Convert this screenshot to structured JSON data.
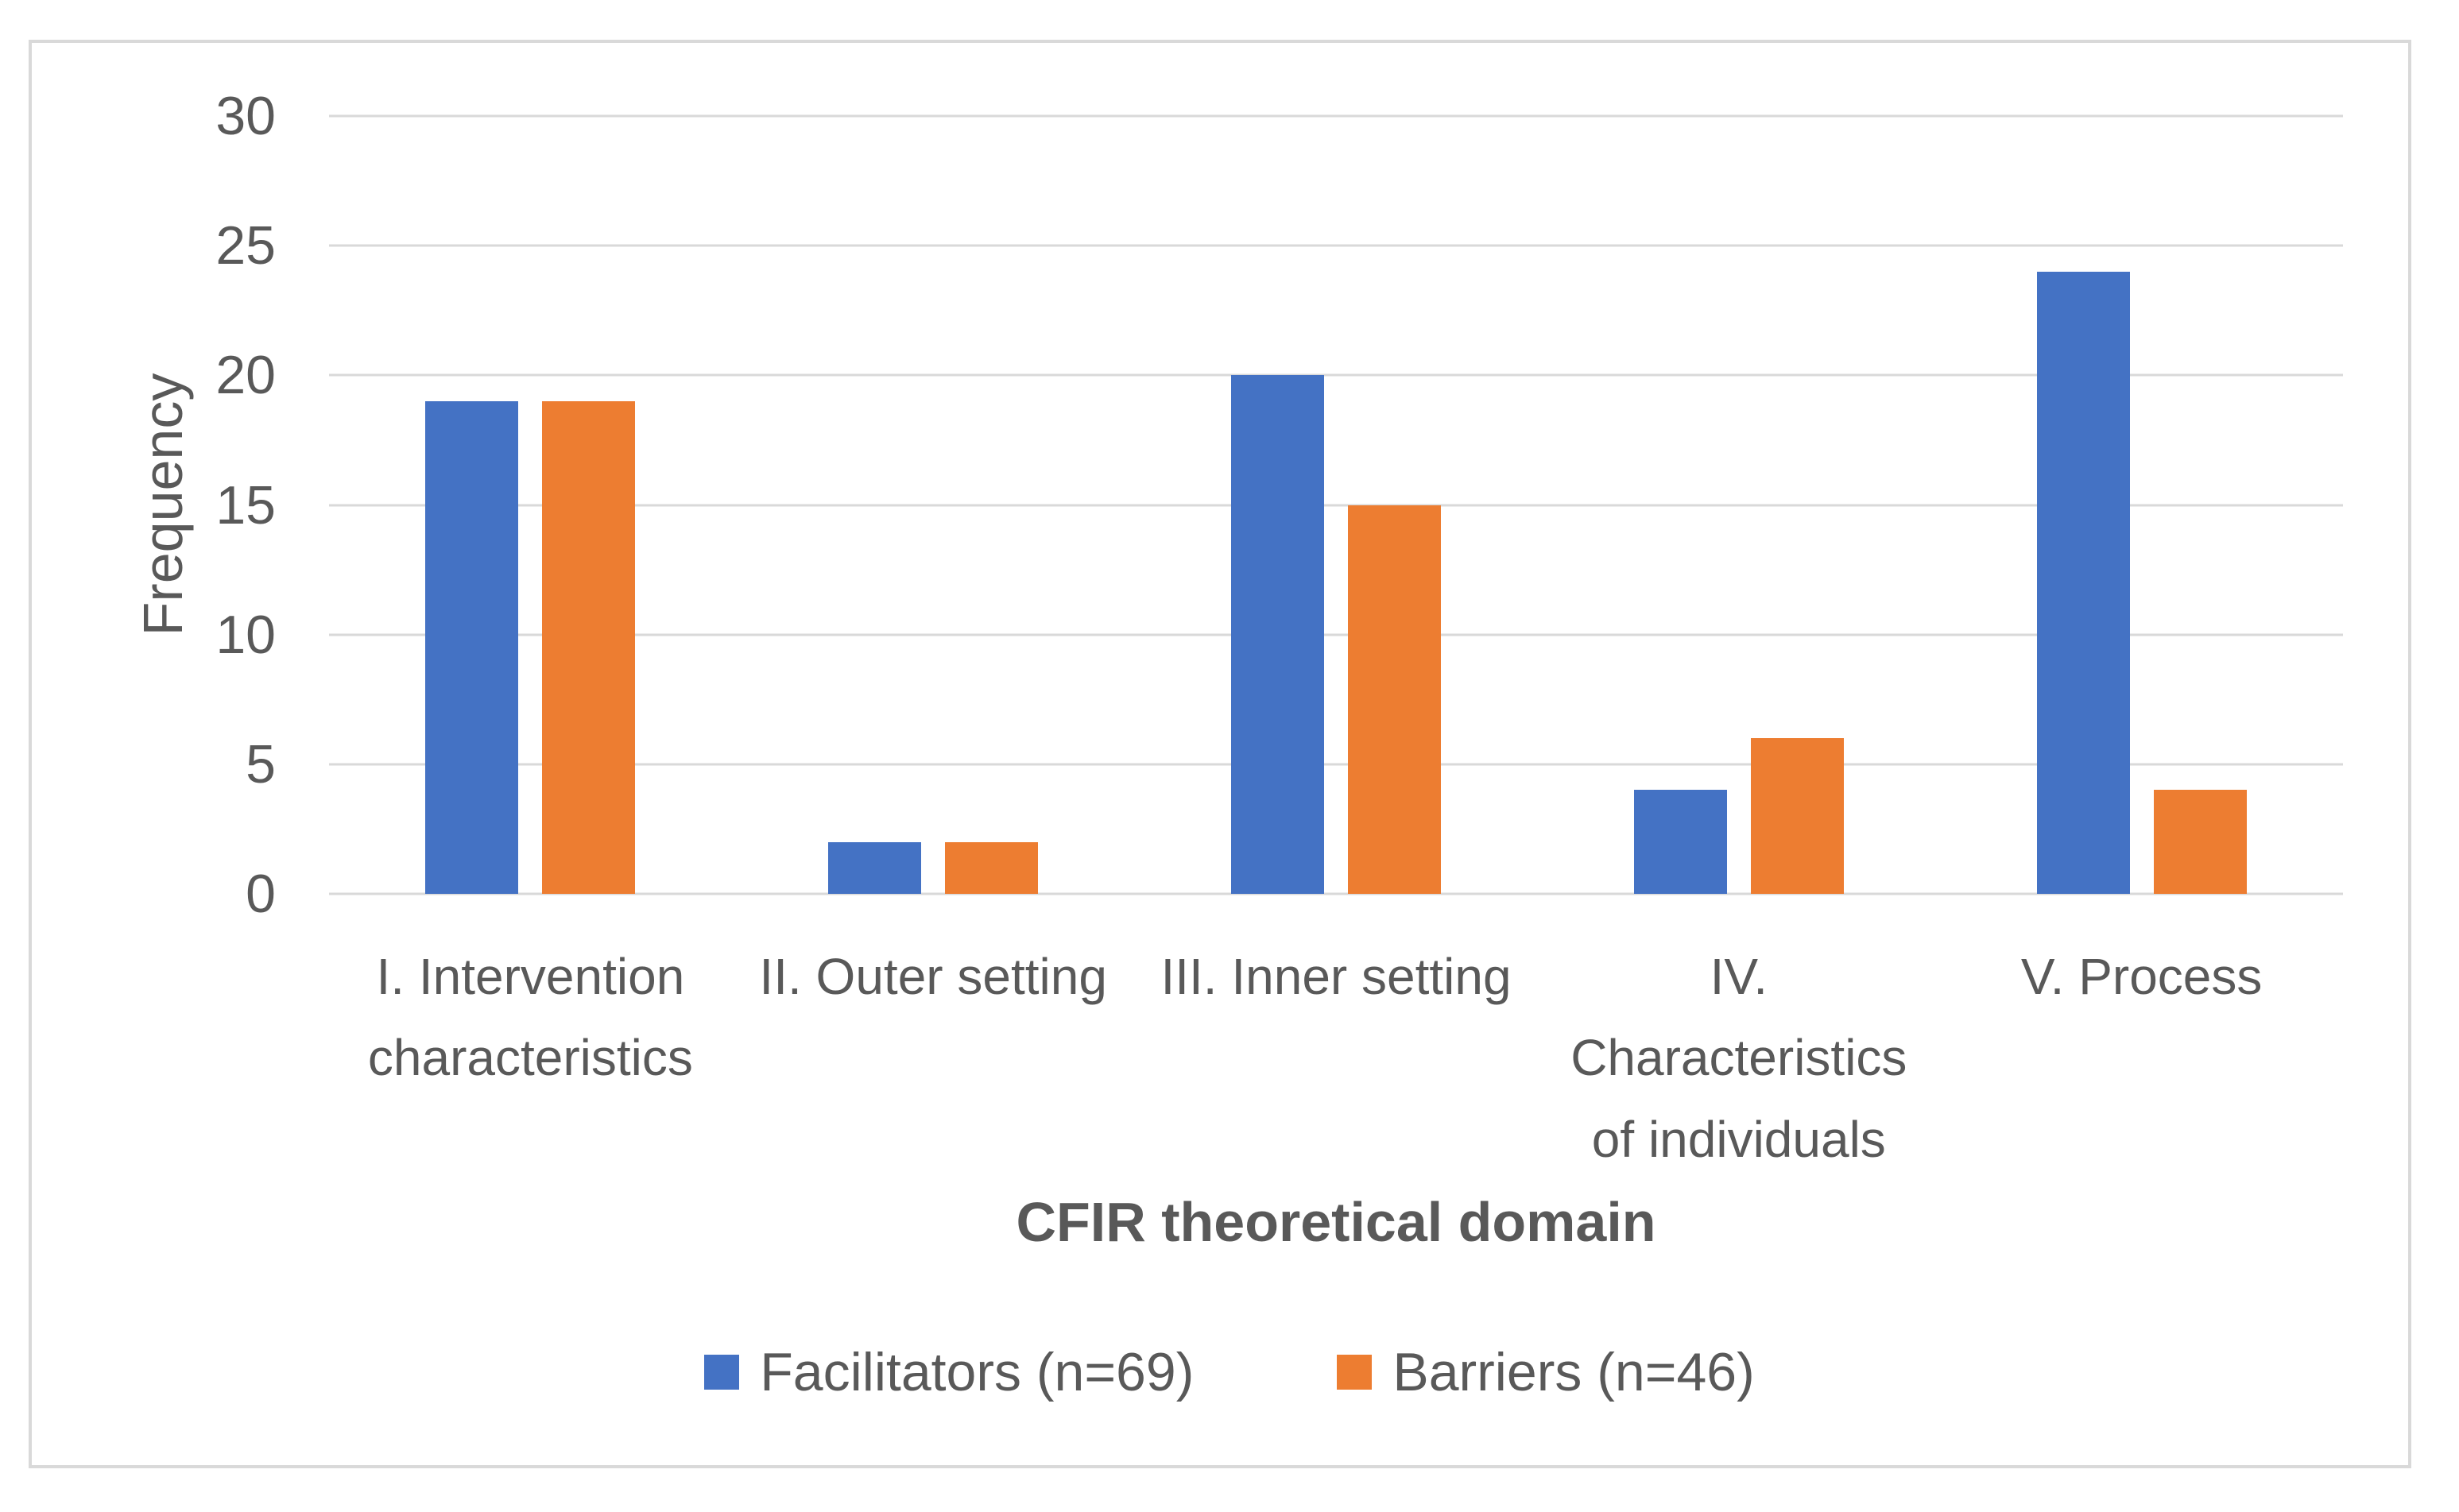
{
  "figure": {
    "background": "#FFFFFF",
    "border_color": "#D9D9D9",
    "text_color": "#595959"
  },
  "chart_data": {
    "type": "bar",
    "title": "",
    "xlabel": "CFIR theoretical domain",
    "ylabel": "Frequency",
    "categories": [
      "I. Intervention characteristics",
      "II. Outer setting",
      "III. Inner setting",
      "IV. Characteristics of individuals",
      "V. Process"
    ],
    "category_lines": [
      [
        "I. Intervention",
        "characteristics"
      ],
      [
        "II. Outer setting"
      ],
      [
        "III. Inner setting"
      ],
      [
        "IV.",
        "Characteristics",
        "of individuals"
      ],
      [
        "V. Process"
      ]
    ],
    "series": [
      {
        "name": "Facilitators (n=69)",
        "color": "#4472C4",
        "values": [
          19,
          2,
          20,
          4,
          24
        ]
      },
      {
        "name": "Barriers (n=46)",
        "color": "#ED7D31",
        "values": [
          19,
          2,
          15,
          6,
          4
        ]
      }
    ],
    "y_ticks": [
      0,
      5,
      10,
      15,
      20,
      25,
      30
    ],
    "ylim": [
      0,
      30
    ],
    "grid": true,
    "gridline_color": "#D9D9D9",
    "legend_position": "bottom"
  }
}
